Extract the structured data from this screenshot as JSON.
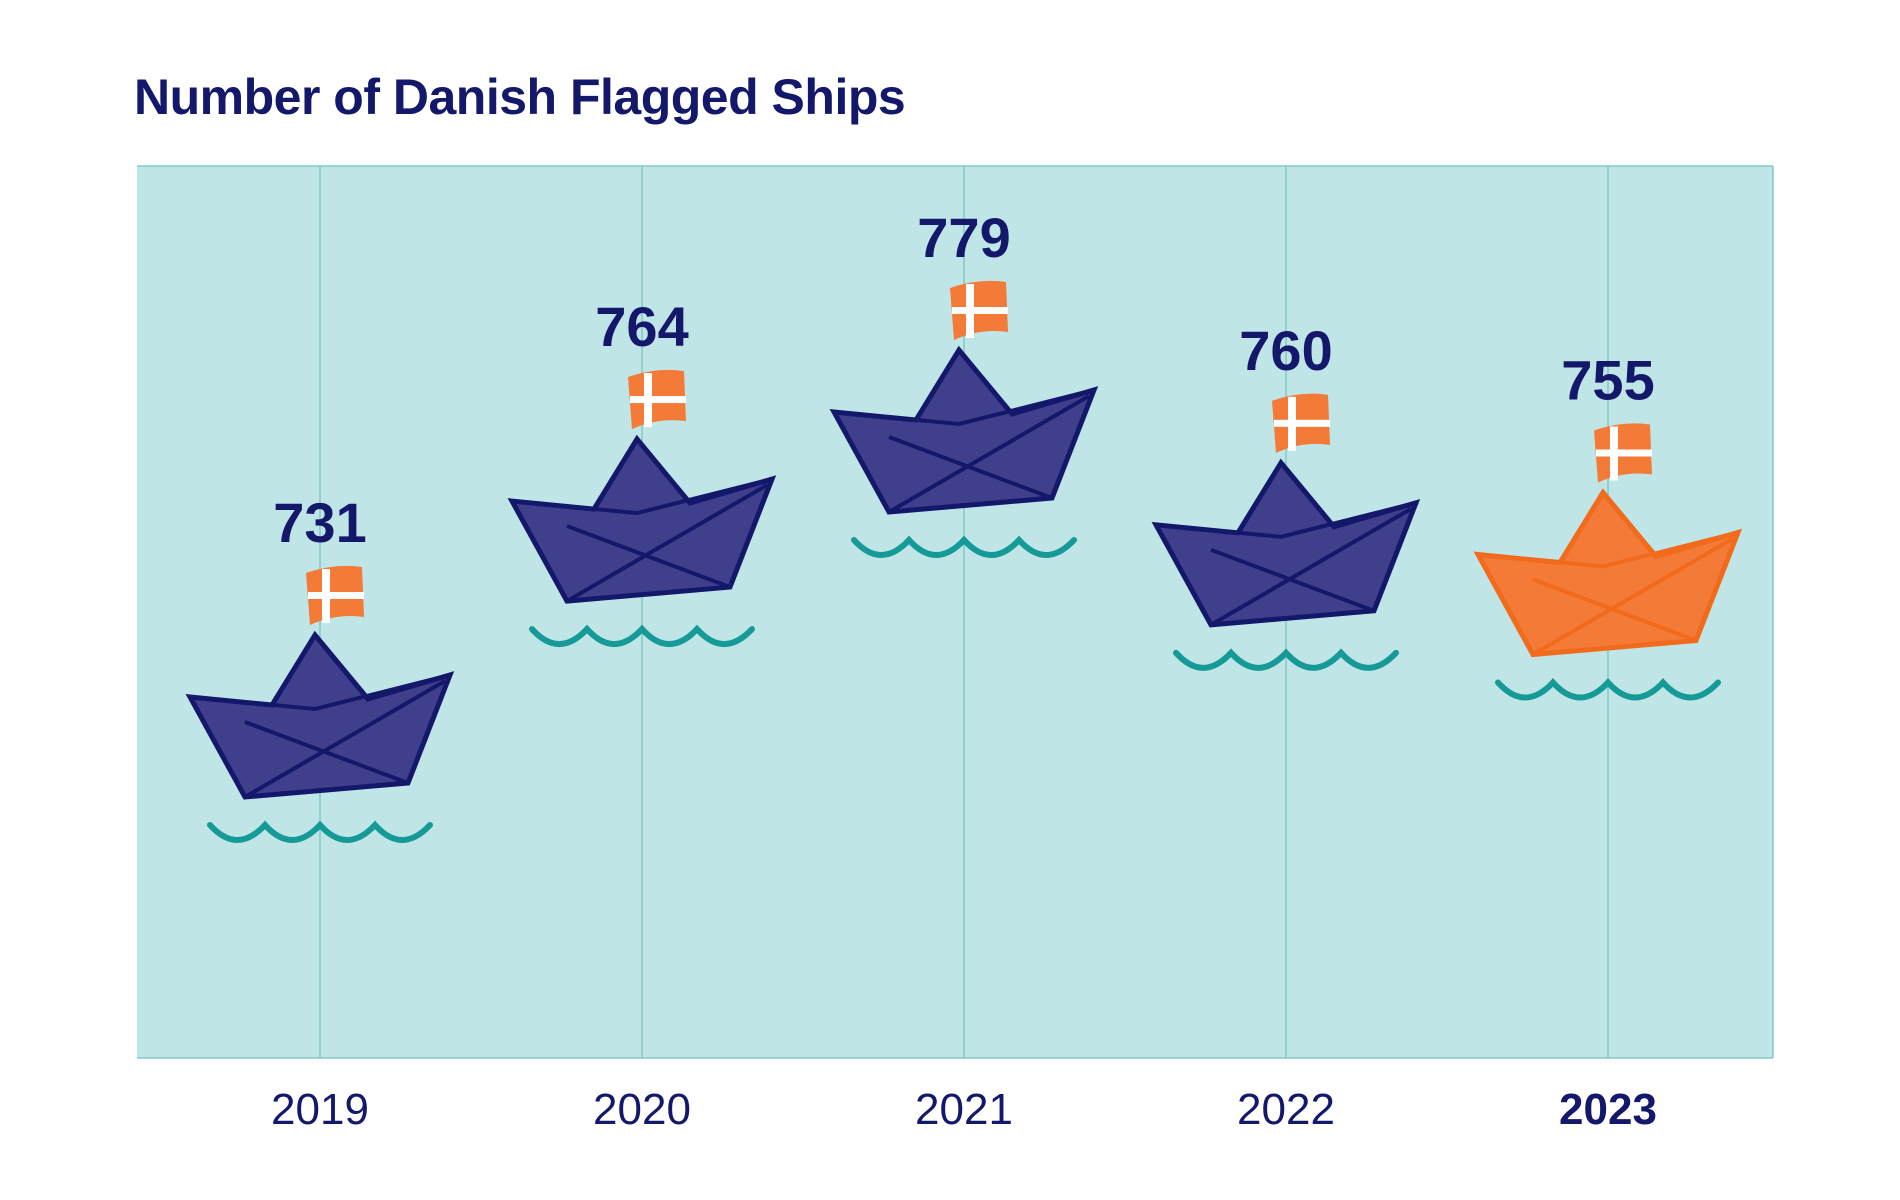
{
  "title": "Number of Danish Flagged Ships",
  "colors": {
    "navy": "#14186b",
    "boat_fill": "#3f3f8c",
    "highlight": "#f47a38",
    "highlight_dark": "#f26a1b",
    "flag_white": "#ffffff",
    "water": "#159a98",
    "plot_bg": "#c0e5e6",
    "grid": "#86c8c8"
  },
  "chart_data": {
    "type": "bar",
    "title": "Number of Danish Flagged Ships",
    "categories": [
      "2019",
      "2020",
      "2021",
      "2022",
      "2023"
    ],
    "values": [
      731,
      764,
      779,
      760,
      755
    ],
    "value_labels": [
      "731",
      "764",
      "779",
      "760",
      "755"
    ],
    "highlight_index": 4,
    "marker": "paper-boat-with-danish-flag",
    "xlabel": "",
    "ylabel": "",
    "ylim": [
      670,
      800
    ],
    "grid": true
  }
}
